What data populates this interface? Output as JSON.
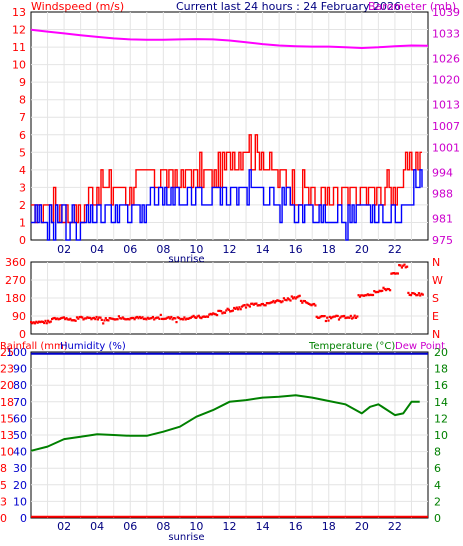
{
  "header": {
    "left_label": "Windspeed (m/s)",
    "center_label": "Current last 24 hours : 24 February 2026",
    "right_label": "Barometer (mb)"
  },
  "colors": {
    "wind_max": "#ff0000",
    "wind_avg": "#0000ff",
    "barometer": "#ff00ff",
    "direction": "#ff0000",
    "rainfall": "#ff0000",
    "humidity": "#0000cc",
    "temperature": "#008000",
    "dewpoint": "#ff00ff"
  },
  "chart_data": [
    {
      "type": "line",
      "name": "wind-barometer",
      "x_ticks": [
        "02",
        "04",
        "06",
        "08",
        "10",
        "12",
        "14",
        "16",
        "18",
        "20",
        "22"
      ],
      "x_tick_values": [
        2,
        4,
        6,
        8,
        10,
        12,
        14,
        16,
        18,
        20,
        22
      ],
      "xlim": [
        0,
        24
      ],
      "x_marker": "sunrise",
      "sunrise_x": 10,
      "left_axis": {
        "label": "Windspeed (m/s)",
        "ticks": [
          "0",
          "1",
          "2",
          "3",
          "4",
          "5",
          "6",
          "7",
          "8",
          "9",
          "10",
          "11",
          "12",
          "13"
        ],
        "range": [
          0,
          13
        ]
      },
      "right_axis": {
        "label": "Barometer (mb)",
        "ticks": [
          "975",
          "981",
          "988",
          "994",
          "1001",
          "1007",
          "1013",
          "1020",
          "1026",
          "1033",
          "1039"
        ],
        "range": [
          975,
          1039
        ]
      },
      "series": [
        {
          "name": "gust",
          "axis": "left",
          "x": [
            0,
            1,
            2,
            3,
            4,
            5,
            6,
            7,
            8,
            9,
            10,
            11,
            12,
            13,
            14,
            15,
            16,
            17,
            18,
            19,
            20,
            21,
            22,
            23
          ],
          "values": [
            1.5,
            2.0,
            1.8,
            1.6,
            3.2,
            2.8,
            3.0,
            3.6,
            3.8,
            3.4,
            3.8,
            4.0,
            4.5,
            5.2,
            4.8,
            3.6,
            3.0,
            2.6,
            2.2,
            2.4,
            2.8,
            2.6,
            3.0,
            4.4
          ]
        },
        {
          "name": "average",
          "axis": "left",
          "x": [
            0,
            1,
            2,
            3,
            4,
            5,
            6,
            7,
            8,
            9,
            10,
            11,
            12,
            13,
            14,
            15,
            16,
            17,
            18,
            19,
            20,
            21,
            22,
            23
          ],
          "values": [
            0.8,
            1.0,
            1.0,
            0.8,
            1.8,
            1.6,
            1.6,
            2.0,
            2.2,
            2.0,
            2.3,
            2.6,
            2.8,
            3.0,
            2.8,
            2.2,
            1.8,
            1.4,
            1.0,
            1.2,
            1.4,
            1.2,
            1.4,
            3.0
          ]
        },
        {
          "name": "pressure",
          "axis": "right",
          "x": [
            0,
            1,
            2,
            3,
            4,
            5,
            6,
            7,
            8,
            9,
            10,
            11,
            12,
            13,
            14,
            15,
            16,
            17,
            18,
            19,
            20,
            21,
            22,
            23,
            24
          ],
          "values": [
            1034,
            1033.5,
            1033,
            1032.5,
            1032,
            1031.6,
            1031.3,
            1031.2,
            1031.2,
            1031.3,
            1031.4,
            1031.3,
            1031,
            1030.5,
            1030,
            1029.6,
            1029.4,
            1029.3,
            1029.3,
            1029.1,
            1028.9,
            1029.1,
            1029.4,
            1029.6,
            1029.5
          ]
        }
      ]
    },
    {
      "type": "scatter",
      "name": "wind-direction",
      "xlim": [
        0,
        24
      ],
      "left_axis": {
        "ticks": [
          "0",
          "90",
          "180",
          "270",
          "360"
        ],
        "range": [
          0,
          360
        ]
      },
      "right_axis": {
        "ticks": [
          "N",
          "E",
          "S",
          "W",
          "N"
        ]
      },
      "x": [
        0,
        0.5,
        1,
        1.5,
        2,
        2.5,
        3,
        3.5,
        4,
        4.5,
        5,
        5.5,
        6,
        6.5,
        7,
        7.5,
        8,
        8.5,
        9,
        9.5,
        10,
        10.5,
        11,
        11.5,
        12,
        12.5,
        13,
        13.5,
        14,
        14.5,
        15,
        15.5,
        16,
        16.5,
        17,
        17.5,
        18,
        18.5,
        19,
        19.5,
        20,
        20.5,
        21,
        21.5,
        22,
        22.5,
        23,
        23.5
      ],
      "values": [
        60,
        60,
        60,
        80,
        80,
        70,
        80,
        80,
        80,
        75,
        80,
        80,
        80,
        80,
        75,
        80,
        80,
        80,
        80,
        80,
        85,
        85,
        100,
        110,
        120,
        130,
        140,
        150,
        150,
        160,
        165,
        175,
        185,
        160,
        150,
        85,
        85,
        85,
        85,
        85,
        190,
        200,
        215,
        225,
        300,
        340,
        200,
        200
      ]
    },
    {
      "type": "line",
      "name": "rain-humidity-temperature",
      "xlim": [
        0,
        24
      ],
      "x_marker": "sunrise",
      "left_axis_outer": {
        "label": "Rainfall (mm)",
        "ticks": [
          "0",
          "3",
          "5",
          "8",
          "10",
          "13",
          "15",
          "18",
          "20",
          "23",
          "25"
        ],
        "range": [
          0,
          25
        ]
      },
      "left_axis_inner": {
        "label": "Humidity (%)",
        "ticks": [
          "0",
          "10",
          "20",
          "30",
          "40",
          "50",
          "60",
          "70",
          "80",
          "90",
          "100"
        ],
        "range": [
          0,
          100
        ]
      },
      "right_axis": {
        "label": "Temperature (°C)",
        "ticks": [
          "0",
          "2",
          "4",
          "6",
          "8",
          "10",
          "12",
          "14",
          "16",
          "18",
          "20"
        ],
        "range": [
          0,
          20
        ]
      },
      "right_label_extra": "Dew Point",
      "series": [
        {
          "name": "temperature",
          "axis": "right",
          "x": [
            0,
            1,
            2,
            3,
            4,
            5,
            6,
            7,
            8,
            9,
            10,
            11,
            12,
            13,
            14,
            15,
            16,
            17,
            18,
            19,
            20,
            20.5,
            21,
            22,
            22.5,
            23,
            23.5
          ],
          "values": [
            8.1,
            8.6,
            9.5,
            9.8,
            10.1,
            10.0,
            9.9,
            9.9,
            10.4,
            11.0,
            12.2,
            13.0,
            14.0,
            14.2,
            14.5,
            14.6,
            14.8,
            14.5,
            14.1,
            13.7,
            12.6,
            13.4,
            13.7,
            12.4,
            12.6,
            14.0,
            14.0
          ]
        },
        {
          "name": "humidity",
          "axis": "inner-left",
          "x": [
            0,
            24
          ],
          "values": [
            99,
            99
          ]
        },
        {
          "name": "rainfall",
          "axis": "outer-left",
          "x": [
            0,
            24
          ],
          "values": [
            0.1,
            0.1
          ]
        }
      ]
    }
  ]
}
